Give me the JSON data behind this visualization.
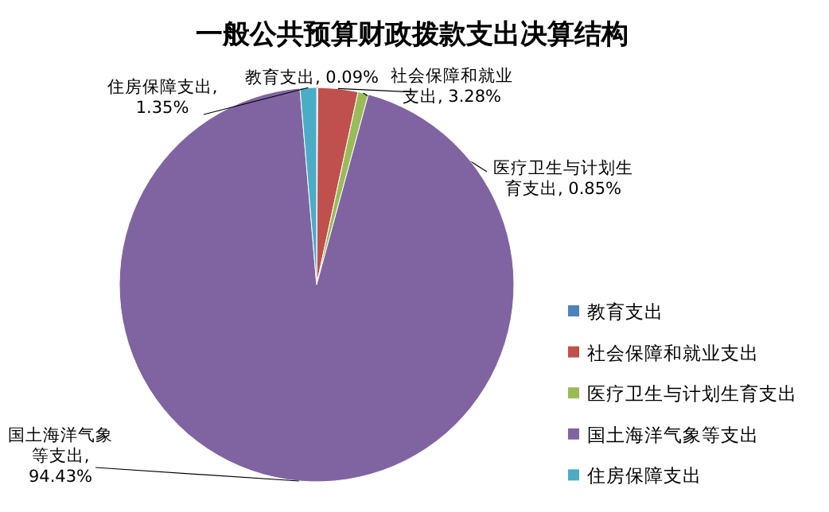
{
  "chart_data": {
    "type": "pie",
    "title": "一般公共预算财政拨款支出决算结构",
    "categories": [
      "教育支出",
      "社会保障和就业支出",
      "医疗卫生与计划生育支出",
      "国土海洋气象等支出",
      "住房保障支出"
    ],
    "values": [
      0.09,
      3.28,
      0.85,
      94.43,
      1.35
    ],
    "value_labels": [
      "教育支出, 0.09%",
      "社会保障和就业支出, 3.28%",
      "医疗卫生与计划生育支出, 0.85%",
      "国土海洋气象等支出, 94.43%",
      "住房保障支出, 1.35%"
    ],
    "colors": [
      "#4f81bd",
      "#c0504d",
      "#9bbb59",
      "#8064a2",
      "#4bacc6"
    ],
    "legend": "right"
  }
}
